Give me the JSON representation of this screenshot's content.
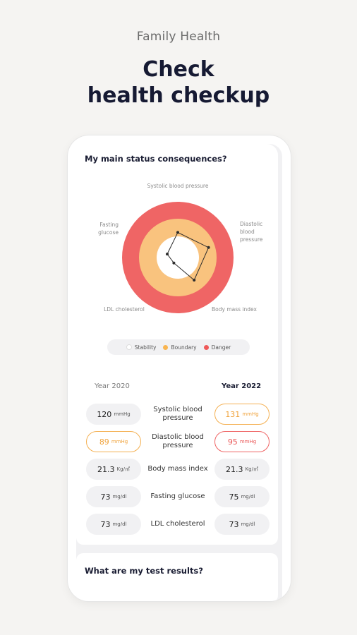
{
  "header": {
    "kicker": "Family Health",
    "title_line1": "Check",
    "title_line2": "health checkup"
  },
  "status_card": {
    "title": "My main status consequences?",
    "axes": [
      "Systolic blood pressure",
      "Diastolic blood pressure",
      "Body mass index",
      "LDL cholesterol",
      "Fasting glucose"
    ],
    "axis_label_lines": {
      "systolic": "Systolic blood pressure",
      "diastolic1": "Diastolic",
      "diastolic2": "blood",
      "diastolic3": "pressure",
      "bmi": "Body mass index",
      "ldl": "LDL cholesterol",
      "fasting1": "Fasting",
      "fasting2": "glucose"
    },
    "colors": {
      "stability": "#ffffff",
      "boundary": "#f9c37e",
      "danger": "#ef6565"
    },
    "radar_levels": [
      0.45,
      0.58,
      0.5,
      0.12,
      0.2
    ],
    "legend": {
      "stability": "Stability",
      "boundary": "Boundary",
      "danger": "Danger"
    },
    "year_left": "Year 2020",
    "year_right": "Year 2022",
    "rows": [
      {
        "metric": "Systolic blood pressure",
        "left_value": "120",
        "left_unit": "mmHg",
        "left_status": "normal",
        "right_value": "131",
        "right_unit": "mmHg",
        "right_status": "boundary"
      },
      {
        "metric": "Diastolic blood pressure",
        "left_value": "89",
        "left_unit": "mmHg",
        "left_status": "boundary",
        "right_value": "95",
        "right_unit": "mmHg",
        "right_status": "danger"
      },
      {
        "metric": "Body mass index",
        "left_value": "21.3",
        "left_unit": "Kg/㎡",
        "left_status": "normal",
        "right_value": "21.3",
        "right_unit": "Kg/㎡",
        "right_status": "normal"
      },
      {
        "metric": "Fasting glucose",
        "left_value": "73",
        "left_unit": "mg/dl",
        "left_status": "normal",
        "right_value": "75",
        "right_unit": "mg/dl",
        "right_status": "normal"
      },
      {
        "metric": "LDL cholesterol",
        "left_value": "73",
        "left_unit": "mg/dl",
        "left_status": "normal",
        "right_value": "73",
        "right_unit": "mg/dl",
        "right_status": "normal"
      }
    ]
  },
  "results_card": {
    "title": "What are my test results?"
  }
}
